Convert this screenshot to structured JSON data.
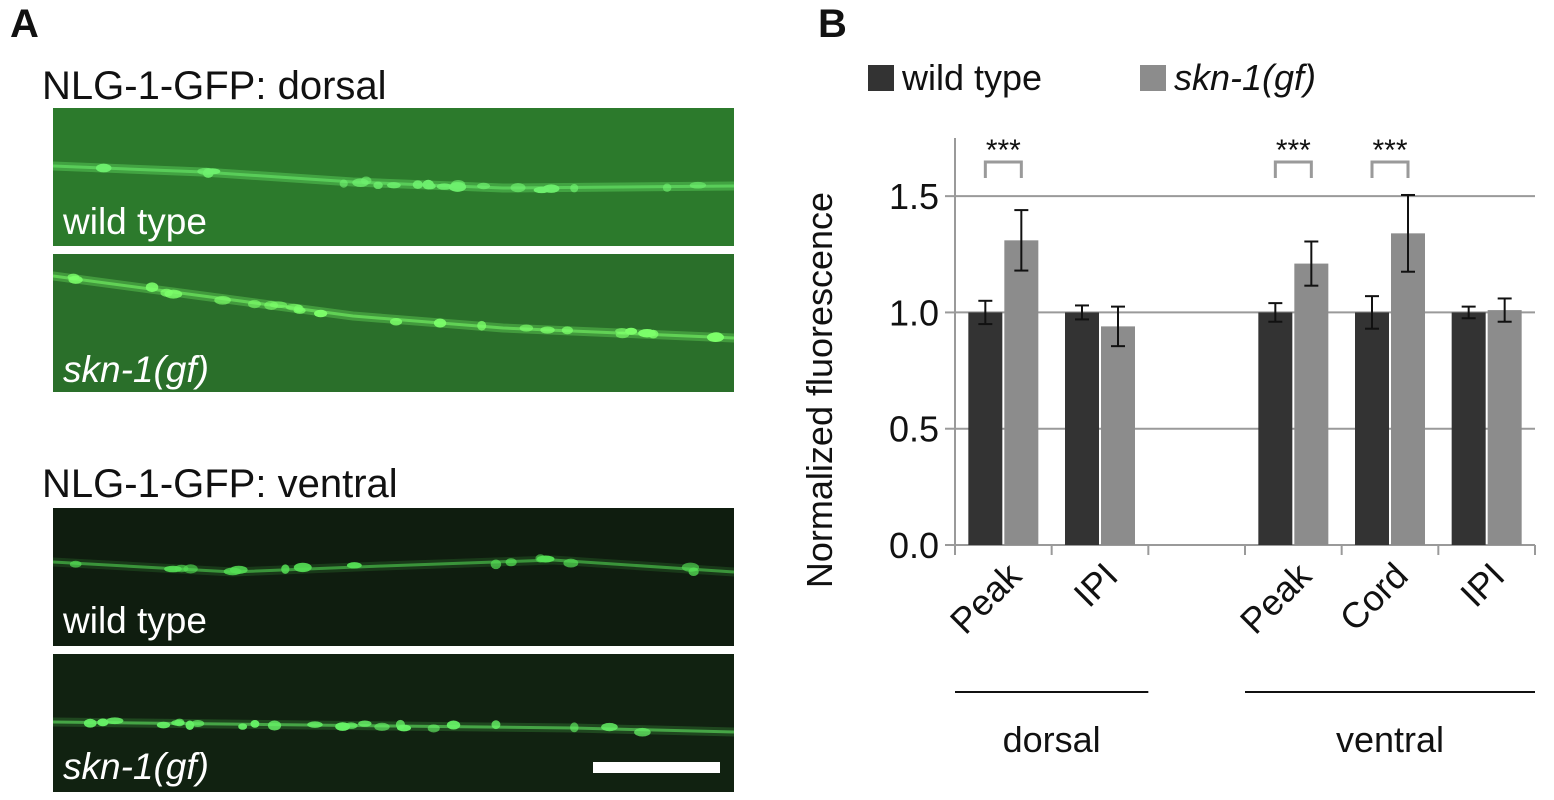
{
  "panel_a": {
    "letter": "A",
    "dorsal_title": "NLG-1-GFP: dorsal",
    "ventral_title": "NLG-1-GFP: ventral",
    "images": [
      {
        "label": "wild type",
        "background": "#2c7a2c",
        "signal": "#6ef06e"
      },
      {
        "label": "skn-1(gf)",
        "background": "#2a6f2a",
        "signal": "#7cff6a"
      },
      {
        "label": "wild type",
        "background": "#0f1d0f",
        "signal": "#55e055"
      },
      {
        "label": "skn-1(gf)",
        "background": "#112211",
        "signal": "#66f266"
      }
    ],
    "scale_bar_color": "#ffffff"
  },
  "panel_b": {
    "letter": "B"
  },
  "chart_data": {
    "type": "bar",
    "ylabel": "Normalized fluorescence",
    "ylim": [
      0,
      1.75
    ],
    "yticks": [
      "0.0",
      "0.5",
      "1.0",
      "1.5"
    ],
    "grid": true,
    "legend_position": "top",
    "groups": [
      {
        "name": "dorsal",
        "categories": [
          "Peak",
          "IPI"
        ]
      },
      {
        "name": "ventral",
        "categories": [
          "Peak",
          "Cord",
          "IPI"
        ]
      }
    ],
    "categories": [
      "Peak",
      "IPI",
      "Peak",
      "Cord",
      "IPI"
    ],
    "series": [
      {
        "name": "wild type",
        "color": "#333333",
        "values": [
          1.0,
          1.0,
          1.0,
          1.0,
          1.0
        ],
        "errors": [
          0.05,
          0.03,
          0.04,
          0.07,
          0.025
        ]
      },
      {
        "name": "skn-1(gf)",
        "color": "#8c8c8c",
        "values": [
          1.31,
          0.94,
          1.21,
          1.34,
          1.01
        ],
        "errors": [
          0.13,
          0.085,
          0.095,
          0.165,
          0.05
        ]
      }
    ],
    "significance": [
      {
        "category_index": 0,
        "label": "***"
      },
      {
        "category_index": 2,
        "label": "***"
      },
      {
        "category_index": 3,
        "label": "***"
      }
    ]
  }
}
